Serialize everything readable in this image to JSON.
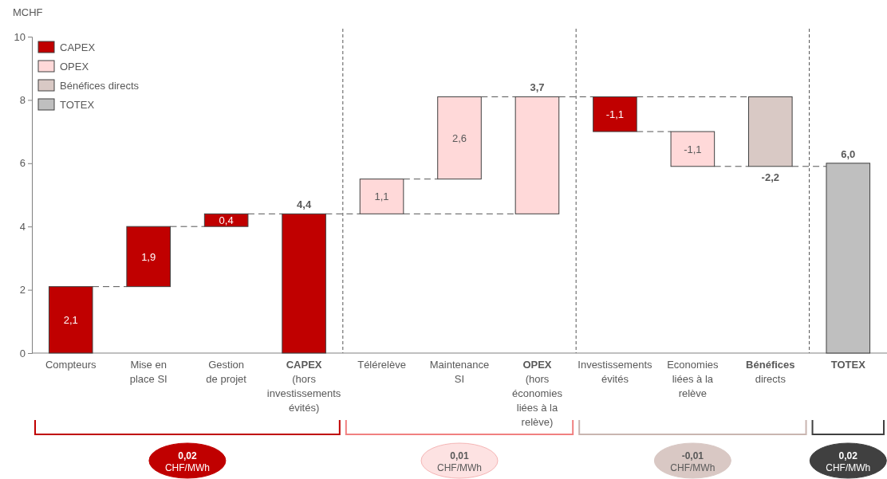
{
  "chart_data": {
    "type": "bar",
    "ylabel": "MCHF",
    "categories": [
      "Compteurs",
      "Mise en\nplace SI",
      "Gestion\nde projet",
      "CAPEX\n(hors\ninvestissements\névités)",
      "Télérelève",
      "Maintenance\nSI",
      "OPEX\n(hors\néconomies\nliées à la\nrelève)",
      "Investissements\névités",
      "Economies\nliées à la\nrelève",
      "Bénéfices\ndirects",
      "TOTEX"
    ],
    "series": [
      {
        "name": "CAPEX",
        "color": "#c00000",
        "base": [
          0,
          2.1,
          4.0,
          0,
          null,
          null,
          null,
          8.1,
          null,
          null,
          null
        ],
        "values": [
          2.1,
          1.9,
          0.4,
          4.4,
          null,
          null,
          null,
          -1.1,
          null,
          null,
          null
        ],
        "value_labels": [
          "2,1",
          "1,9",
          "0,4",
          "4,4",
          null,
          null,
          null,
          "-1,1",
          null,
          null,
          null
        ]
      },
      {
        "name": "OPEX",
        "color": "#ffd9d9",
        "base": [
          null,
          null,
          null,
          null,
          4.4,
          5.5,
          4.4,
          null,
          7.0,
          null,
          null
        ],
        "values": [
          null,
          null,
          null,
          null,
          1.1,
          2.6,
          3.7,
          null,
          -1.1,
          null,
          null
        ],
        "value_labels": [
          null,
          null,
          null,
          null,
          "1,1",
          "2,6",
          "3,7",
          null,
          "-1,1",
          null,
          null
        ]
      },
      {
        "name": "Bénéfices directs",
        "color": "#d9c9c5",
        "base": [
          null,
          null,
          null,
          null,
          null,
          null,
          null,
          null,
          null,
          8.1,
          null
        ],
        "values": [
          null,
          null,
          null,
          null,
          null,
          null,
          null,
          null,
          null,
          -2.2,
          null
        ],
        "value_labels": [
          null,
          null,
          null,
          null,
          null,
          null,
          null,
          null,
          null,
          "-2,2",
          null
        ]
      },
      {
        "name": "TOTEX",
        "color": "#bfbfbf",
        "base": [
          null,
          null,
          null,
          null,
          null,
          null,
          null,
          null,
          null,
          null,
          0
        ],
        "values": [
          null,
          null,
          null,
          null,
          null,
          null,
          null,
          null,
          null,
          null,
          6.0
        ],
        "value_labels": [
          null,
          null,
          null,
          null,
          null,
          null,
          null,
          null,
          null,
          null,
          "6,0"
        ]
      }
    ],
    "ylim": [
      0,
      10
    ],
    "yticks": [
      0,
      2,
      4,
      6,
      8,
      10
    ],
    "legend": "top left",
    "annotations": [
      "0,02\nCHF/MWh",
      "0,01\nCHF/MWh",
      "-0,01\nCHF/MWh",
      "0,02\nCHF/MWh"
    ]
  }
}
